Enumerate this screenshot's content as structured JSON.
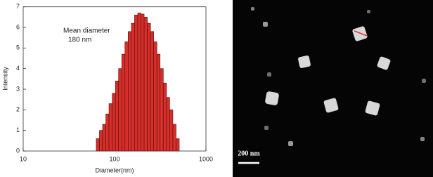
{
  "chart_data": {
    "type": "histogram",
    "x_label": "Diameter(nm)",
    "y_label": "Intensity",
    "annotation": [
      "Mean diameter",
      "180 nm"
    ],
    "bins": [
      63,
      68.3,
      74.0,
      80.2,
      86.9,
      94.2,
      102.1,
      110.6,
      119.9,
      129.9,
      140.8,
      152.6,
      165.4,
      179.3,
      194.3,
      210.6,
      228.2,
      247.3,
      268.0,
      290.5,
      314.8,
      341.2,
      369.8,
      400.8,
      434.4,
      470.8,
      510.2
    ],
    "values": [
      0.6,
      1.0,
      1.3,
      1.8,
      2.3,
      2.8,
      3.4,
      4.0,
      4.7,
      5.3,
      5.8,
      6.2,
      6.6,
      6.7,
      6.65,
      6.5,
      6.2,
      5.8,
      5.3,
      4.7,
      4.0,
      3.3,
      2.6,
      2.0,
      1.3,
      0.6
    ],
    "color": "#d42f2a",
    "edge_color": "#5a0a08",
    "x_scale": "log",
    "xlim": [
      10,
      1000
    ],
    "xticks": [
      10,
      100,
      1000
    ],
    "ylim": [
      0,
      7
    ],
    "yticks": [
      0,
      1,
      2,
      3,
      4,
      5,
      6,
      7
    ]
  },
  "image": {
    "scale_label": "200 nm"
  }
}
